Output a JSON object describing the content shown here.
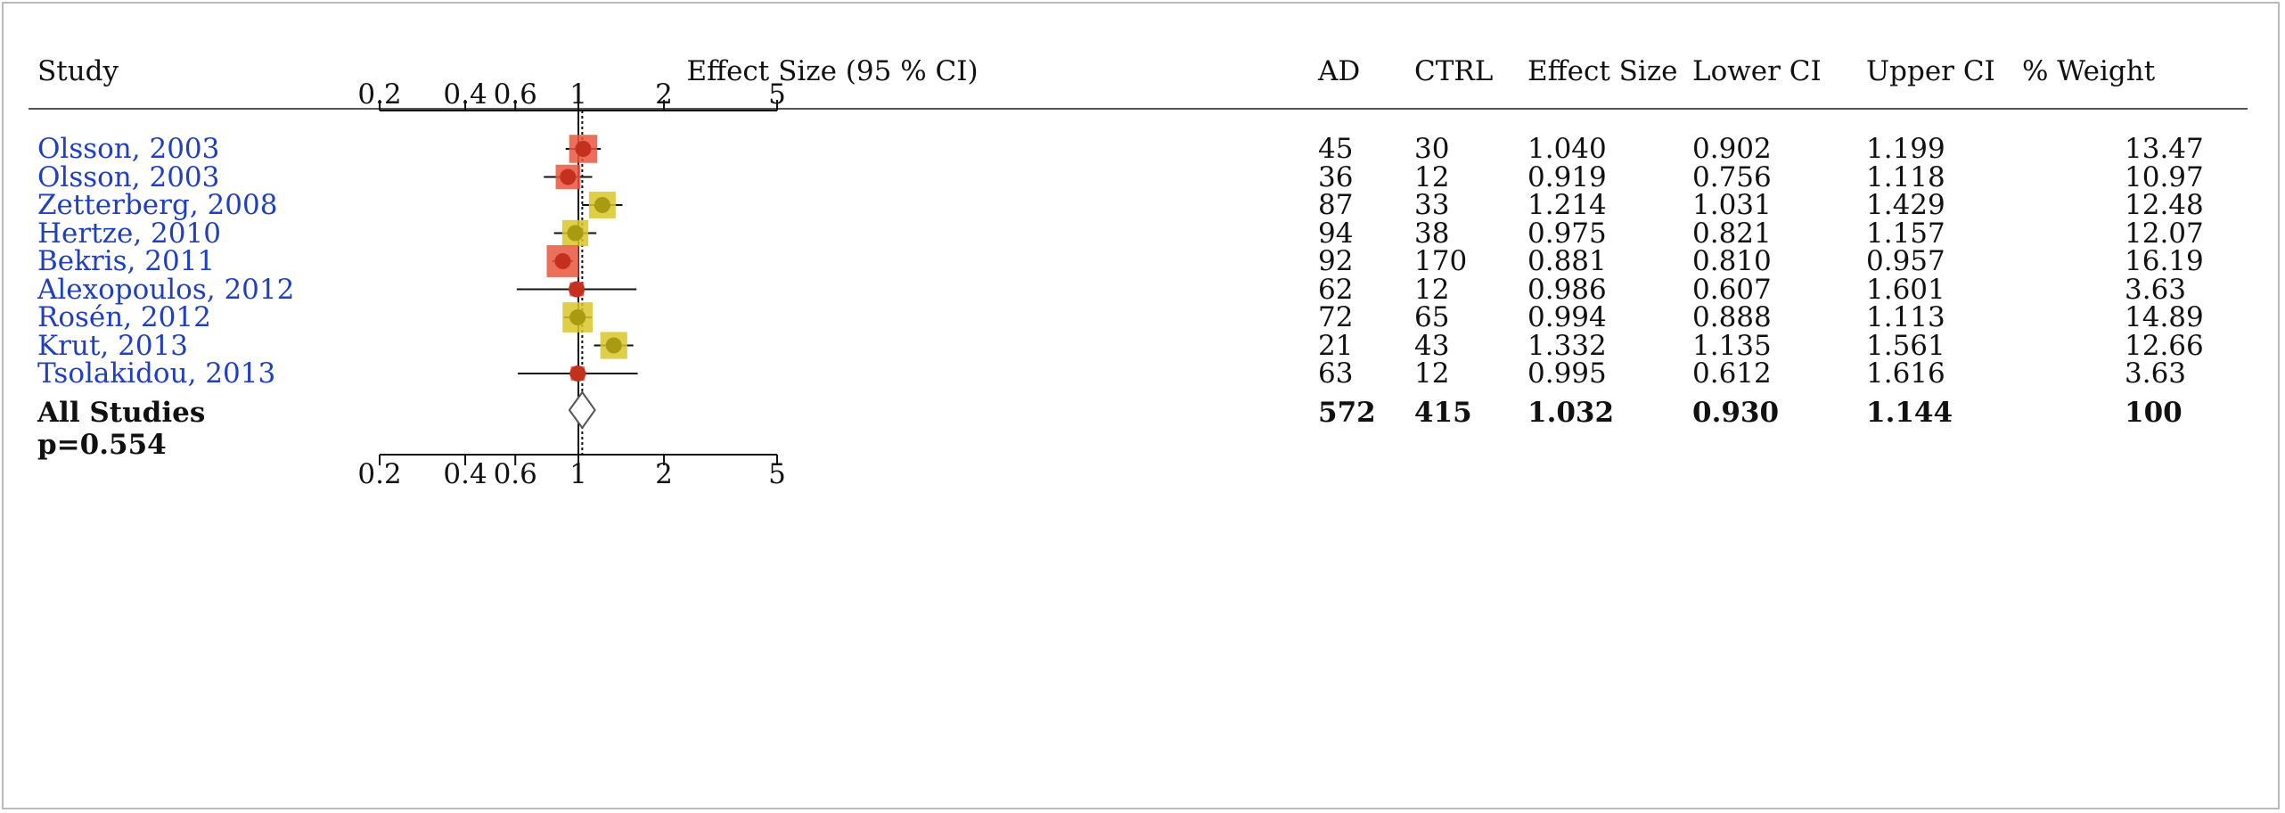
{
  "headers": {
    "study": "Study",
    "effect": "Effect Size (95 % CI)",
    "ad": "AD",
    "ctrl": "CTRL",
    "es": "Effect Size",
    "lower": "Lower CI",
    "upper": "Upper CI",
    "weight": "% Weight"
  },
  "colors": {
    "red": "#e9563f",
    "yellow": "#d9c52a",
    "study_text": "#1f3fbf"
  },
  "chart_data": {
    "type": "forest",
    "x_scale": "log",
    "xlim": [
      0.2,
      5
    ],
    "ticks": [
      "0.2",
      "0.4",
      "0.6",
      "1",
      "2",
      "5"
    ],
    "tick_values": [
      0.2,
      0.4,
      0.6,
      1,
      2,
      5
    ],
    "reference_line": 1,
    "studies": [
      {
        "name": "Olsson, 2003",
        "ad": "45",
        "ctrl": "30",
        "es": "1.040",
        "lower": "0.902",
        "upper": "1.199",
        "weight": "13.47",
        "es_value": 1.04,
        "lower_value": 0.902,
        "upper_value": 1.199,
        "weight_value": 13.47,
        "color": "red"
      },
      {
        "name": "Olsson, 2003",
        "ad": "36",
        "ctrl": "12",
        "es": "0.919",
        "lower": "0.756",
        "upper": "1.118",
        "weight": "10.97",
        "es_value": 0.919,
        "lower_value": 0.756,
        "upper_value": 1.118,
        "weight_value": 10.97,
        "color": "red"
      },
      {
        "name": "Zetterberg, 2008",
        "ad": "87",
        "ctrl": "33",
        "es": "1.214",
        "lower": "1.031",
        "upper": "1.429",
        "weight": "12.48",
        "es_value": 1.214,
        "lower_value": 1.031,
        "upper_value": 1.429,
        "weight_value": 12.48,
        "color": "yellow"
      },
      {
        "name": "Hertze, 2010",
        "ad": "94",
        "ctrl": "38",
        "es": "0.975",
        "lower": "0.821",
        "upper": "1.157",
        "weight": "12.07",
        "es_value": 0.975,
        "lower_value": 0.821,
        "upper_value": 1.157,
        "weight_value": 12.07,
        "color": "yellow"
      },
      {
        "name": "Bekris, 2011",
        "ad": "92",
        "ctrl": "170",
        "es": "0.881",
        "lower": "0.810",
        "upper": "0.957",
        "weight": "16.19",
        "es_value": 0.881,
        "lower_value": 0.81,
        "upper_value": 0.957,
        "weight_value": 16.19,
        "color": "red"
      },
      {
        "name": "Alexopoulos, 2012",
        "ad": "62",
        "ctrl": "12",
        "es": "0.986",
        "lower": "0.607",
        "upper": "1.601",
        "weight": "3.63",
        "es_value": 0.986,
        "lower_value": 0.607,
        "upper_value": 1.601,
        "weight_value": 3.63,
        "color": "red"
      },
      {
        "name": "Rosén, 2012",
        "ad": "72",
        "ctrl": "65",
        "es": "0.994",
        "lower": "0.888",
        "upper": "1.113",
        "weight": "14.89",
        "es_value": 0.994,
        "lower_value": 0.888,
        "upper_value": 1.113,
        "weight_value": 14.89,
        "color": "yellow"
      },
      {
        "name": "Krut, 2013",
        "ad": "21",
        "ctrl": "43",
        "es": "1.332",
        "lower": "1.135",
        "upper": "1.561",
        "weight": "12.66",
        "es_value": 1.332,
        "lower_value": 1.135,
        "upper_value": 1.561,
        "weight_value": 12.66,
        "color": "yellow"
      },
      {
        "name": "Tsolakidou, 2013",
        "ad": "63",
        "ctrl": "12",
        "es": "0.995",
        "lower": "0.612",
        "upper": "1.616",
        "weight": "3.63",
        "es_value": 0.995,
        "lower_value": 0.612,
        "upper_value": 1.616,
        "weight_value": 3.63,
        "color": "red"
      }
    ],
    "summary": {
      "name": "All Studies",
      "p_label": "p=0.554",
      "ad": "572",
      "ctrl": "415",
      "es": "1.032",
      "lower": "0.930",
      "upper": "1.144",
      "weight": "100",
      "es_value": 1.032,
      "lower_value": 0.93,
      "upper_value": 1.144
    }
  }
}
